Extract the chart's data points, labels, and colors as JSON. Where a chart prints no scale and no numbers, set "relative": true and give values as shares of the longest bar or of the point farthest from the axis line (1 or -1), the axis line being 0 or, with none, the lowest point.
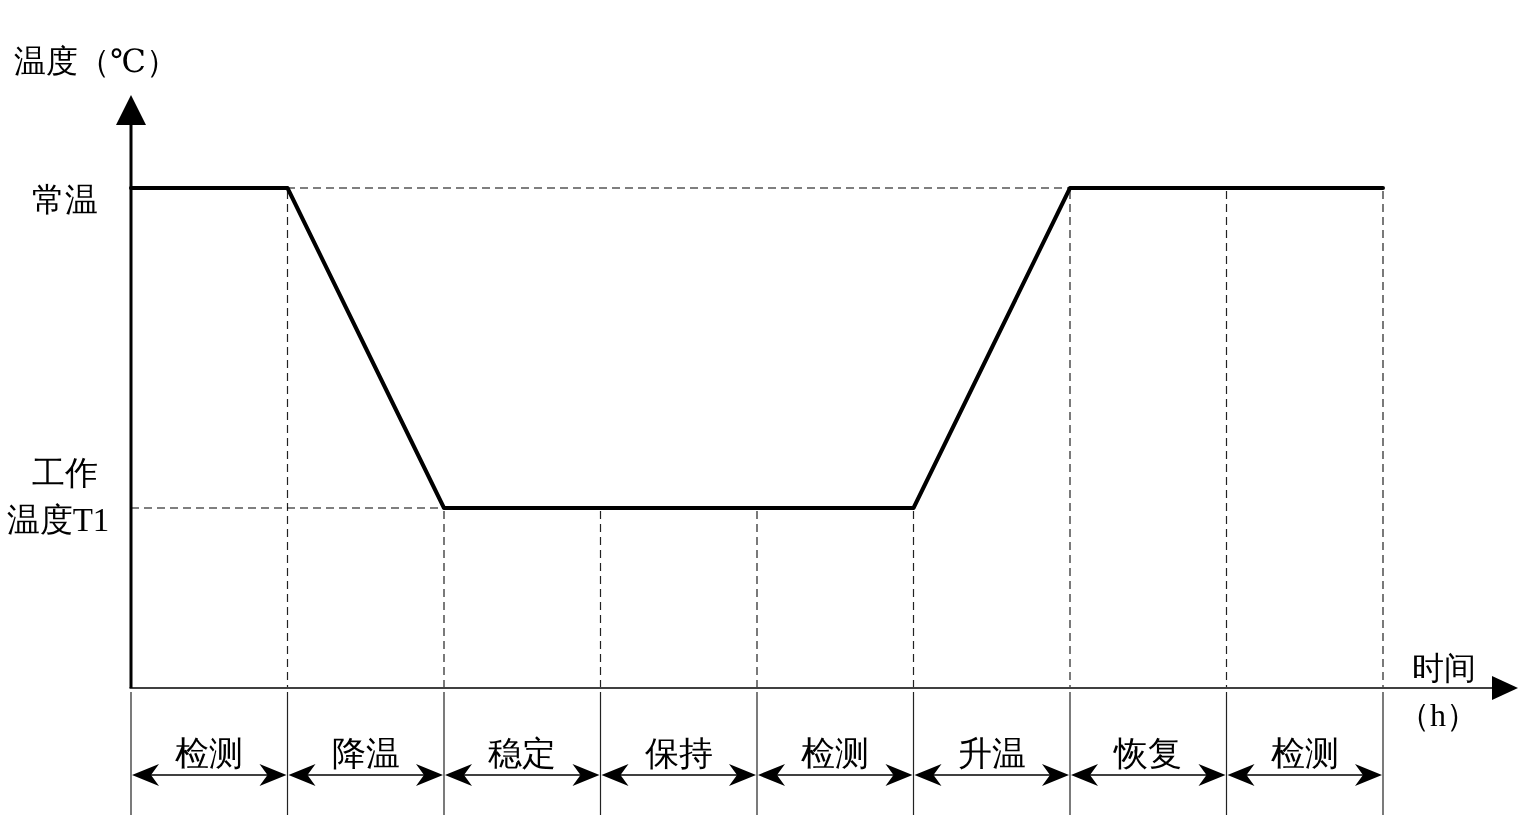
{
  "chart_data": {
    "type": "line",
    "relative": true,
    "ylabel": "温度（℃）",
    "xlabel": "时间（h）",
    "grid": "x",
    "categories": [
      null,
      "检测",
      null,
      "降温",
      null,
      "稳定",
      null,
      "保持",
      null,
      "检测",
      null,
      "升温",
      null,
      "恢复",
      null,
      "检测",
      null
    ],
    "series": [
      {
        "color": "#000000",
        "values": [
          1,
          1,
          1,
          0.68,
          0.36,
          0.36,
          0.36,
          0.36,
          0.36,
          0.36,
          0.36,
          0.68,
          1,
          1,
          1,
          1,
          1
        ]
      }
    ],
    "ref_lines": [
      {
        "axis": "y",
        "value": 1,
        "label": "常温",
        "color": "#000000",
        "line_style": "dashed"
      },
      {
        "axis": "y",
        "value": 0.36,
        "label": "工作温度T1",
        "color": "#000000",
        "line_style": "dashed"
      }
    ]
  }
}
